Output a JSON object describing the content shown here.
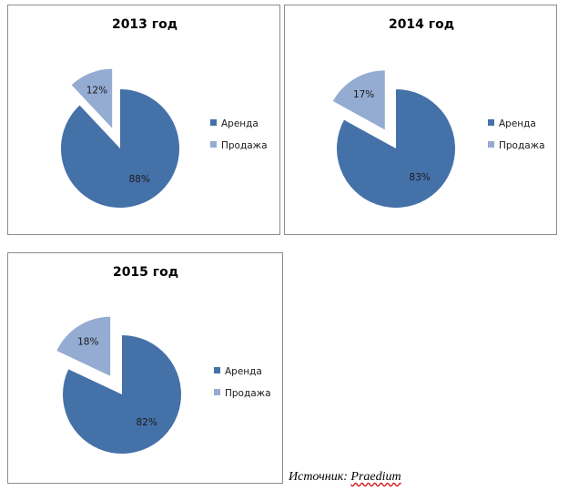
{
  "chart_data": [
    {
      "type": "pie",
      "title": "2013 год",
      "categories": [
        "Аренда",
        "Продажа"
      ],
      "values": [
        88,
        12
      ],
      "labels": [
        "88%",
        "12%"
      ],
      "exploded": "Продажа",
      "legend_position": "right"
    },
    {
      "type": "pie",
      "title": "2014 год",
      "categories": [
        "Аренда",
        "Продажа"
      ],
      "values": [
        83,
        17
      ],
      "labels": [
        "83%",
        "17%"
      ],
      "exploded": "Продажа",
      "legend_position": "right"
    },
    {
      "type": "pie",
      "title": "2015 год",
      "categories": [
        "Аренда",
        "Продажа"
      ],
      "values": [
        82,
        18
      ],
      "labels": [
        "82%",
        "18%"
      ],
      "exploded": "Продажа",
      "legend_position": "right"
    }
  ],
  "colors": {
    "Аренда": "#4571a9",
    "Продажа": "#94abd2"
  },
  "source": {
    "prefix": "Источник: ",
    "name": "Praedium"
  }
}
